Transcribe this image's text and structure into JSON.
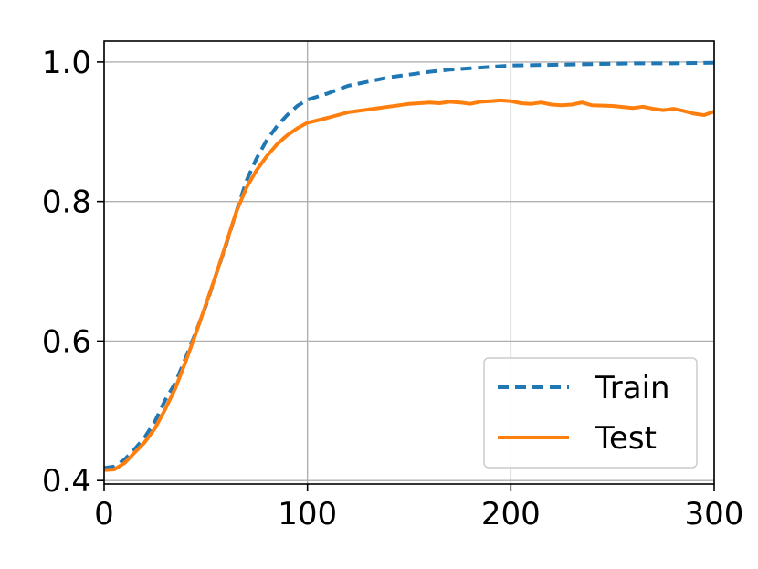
{
  "chart_data": {
    "type": "line",
    "title": "",
    "xlabel": "",
    "ylabel": "",
    "xlim": [
      0,
      300
    ],
    "ylim": [
      0.395,
      1.03
    ],
    "xticks": [
      0,
      100,
      200,
      300
    ],
    "yticks": [
      0.4,
      0.6,
      0.8,
      1.0
    ],
    "xtick_labels": [
      "0",
      "100",
      "200",
      "300"
    ],
    "ytick_labels": [
      "0.4",
      "0.6",
      "0.8",
      "1.0"
    ],
    "grid": true,
    "legend_position": "lower-right",
    "series": [
      {
        "name": "Train",
        "color": "#1f77b4",
        "style": "dashed",
        "x": [
          0,
          5,
          10,
          15,
          20,
          25,
          30,
          35,
          40,
          45,
          50,
          55,
          60,
          65,
          70,
          75,
          80,
          85,
          90,
          95,
          100,
          110,
          120,
          130,
          140,
          150,
          160,
          170,
          180,
          190,
          200,
          220,
          240,
          260,
          280,
          300
        ],
        "y": [
          0.418,
          0.42,
          0.43,
          0.445,
          0.462,
          0.485,
          0.515,
          0.54,
          0.575,
          0.612,
          0.65,
          0.695,
          0.738,
          0.785,
          0.83,
          0.862,
          0.888,
          0.908,
          0.924,
          0.937,
          0.946,
          0.955,
          0.966,
          0.972,
          0.978,
          0.982,
          0.986,
          0.989,
          0.991,
          0.993,
          0.995,
          0.996,
          0.997,
          0.998,
          0.998,
          0.999
        ]
      },
      {
        "name": "Test",
        "color": "#ff7f0e",
        "style": "solid",
        "x": [
          0,
          5,
          10,
          15,
          20,
          25,
          30,
          35,
          40,
          45,
          50,
          55,
          60,
          65,
          70,
          75,
          80,
          85,
          90,
          95,
          100,
          110,
          120,
          130,
          140,
          150,
          160,
          165,
          170,
          175,
          180,
          185,
          190,
          195,
          200,
          205,
          210,
          215,
          220,
          225,
          230,
          235,
          240,
          250,
          260,
          265,
          270,
          275,
          280,
          285,
          290,
          295,
          300
        ],
        "y": [
          0.415,
          0.416,
          0.425,
          0.44,
          0.455,
          0.475,
          0.502,
          0.532,
          0.57,
          0.61,
          0.652,
          0.695,
          0.74,
          0.785,
          0.82,
          0.845,
          0.865,
          0.882,
          0.895,
          0.905,
          0.913,
          0.92,
          0.928,
          0.932,
          0.936,
          0.94,
          0.942,
          0.941,
          0.943,
          0.942,
          0.94,
          0.943,
          0.944,
          0.945,
          0.944,
          0.941,
          0.94,
          0.942,
          0.939,
          0.938,
          0.939,
          0.942,
          0.938,
          0.937,
          0.934,
          0.936,
          0.933,
          0.931,
          0.933,
          0.93,
          0.926,
          0.924,
          0.929
        ]
      }
    ]
  }
}
